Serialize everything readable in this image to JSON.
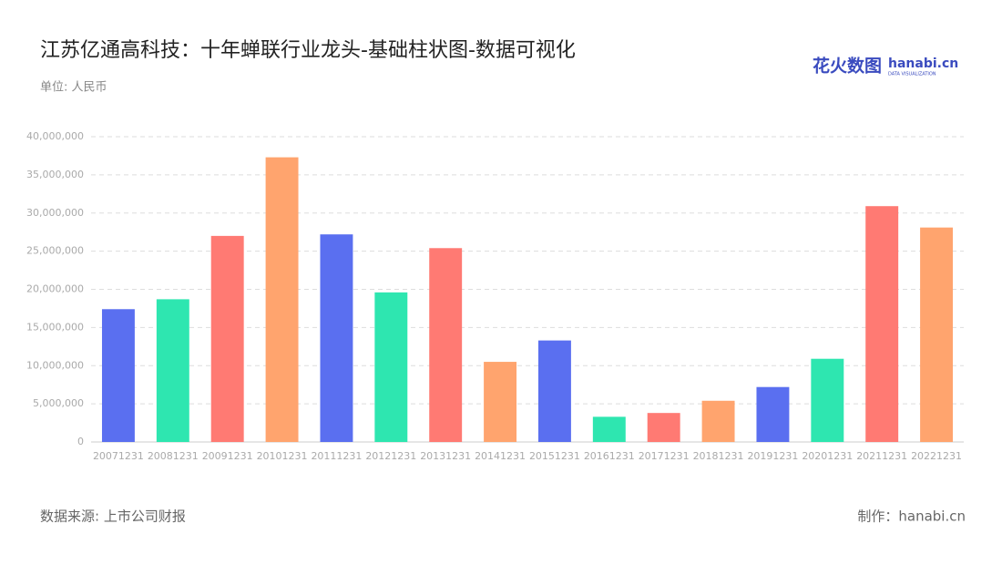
{
  "chart_data": {
    "type": "bar",
    "title": "江苏亿通高科技：十年蝉联行业龙头-基础柱状图-数据可视化",
    "unit": "单位: 人民币",
    "source": "数据来源: 上市公司财报",
    "credit": "制作：hanabi.cn",
    "logo": {
      "name": "花火数图",
      "brand": "hanabi.cn",
      "tagline": "DATA VISUALIZATION"
    },
    "categories": [
      "20071231",
      "20081231",
      "20091231",
      "20101231",
      "20111231",
      "20121231",
      "20131231",
      "20141231",
      "20151231",
      "20161231",
      "20171231",
      "20181231",
      "20191231",
      "20201231",
      "20211231",
      "20221231"
    ],
    "values": [
      17400000,
      18700000,
      27000000,
      37300000,
      27200000,
      19600000,
      25400000,
      10500000,
      13300000,
      3300000,
      3800000,
      5400000,
      7200000,
      10900000,
      30900000,
      28100000
    ],
    "colors": [
      "#5a6ff0",
      "#2ee6b0",
      "#ff7a73",
      "#ffa46e",
      "#5a6ff0",
      "#2ee6b0",
      "#ff7a73",
      "#ffa46e",
      "#5a6ff0",
      "#2ee6b0",
      "#ff7a73",
      "#ffa46e",
      "#5a6ff0",
      "#2ee6b0",
      "#ff7a73",
      "#ffa46e"
    ],
    "ylim": [
      0,
      40000000
    ],
    "yticks": [
      0,
      {
        "value": 5000000,
        "label": "5,000,000"
      },
      {
        "value": 10000000,
        "label": "10,000,000"
      },
      {
        "value": 15000000,
        "label": "15,000,000"
      },
      {
        "value": 20000000,
        "label": "20,000,000"
      },
      {
        "value": 25000000,
        "label": "25,000,000"
      },
      {
        "value": 30000000,
        "label": "30,000,000"
      },
      {
        "value": 35000000,
        "label": "35,000,000"
      },
      {
        "value": 40000000,
        "label": "40,000,000"
      }
    ],
    "grid": true
  }
}
